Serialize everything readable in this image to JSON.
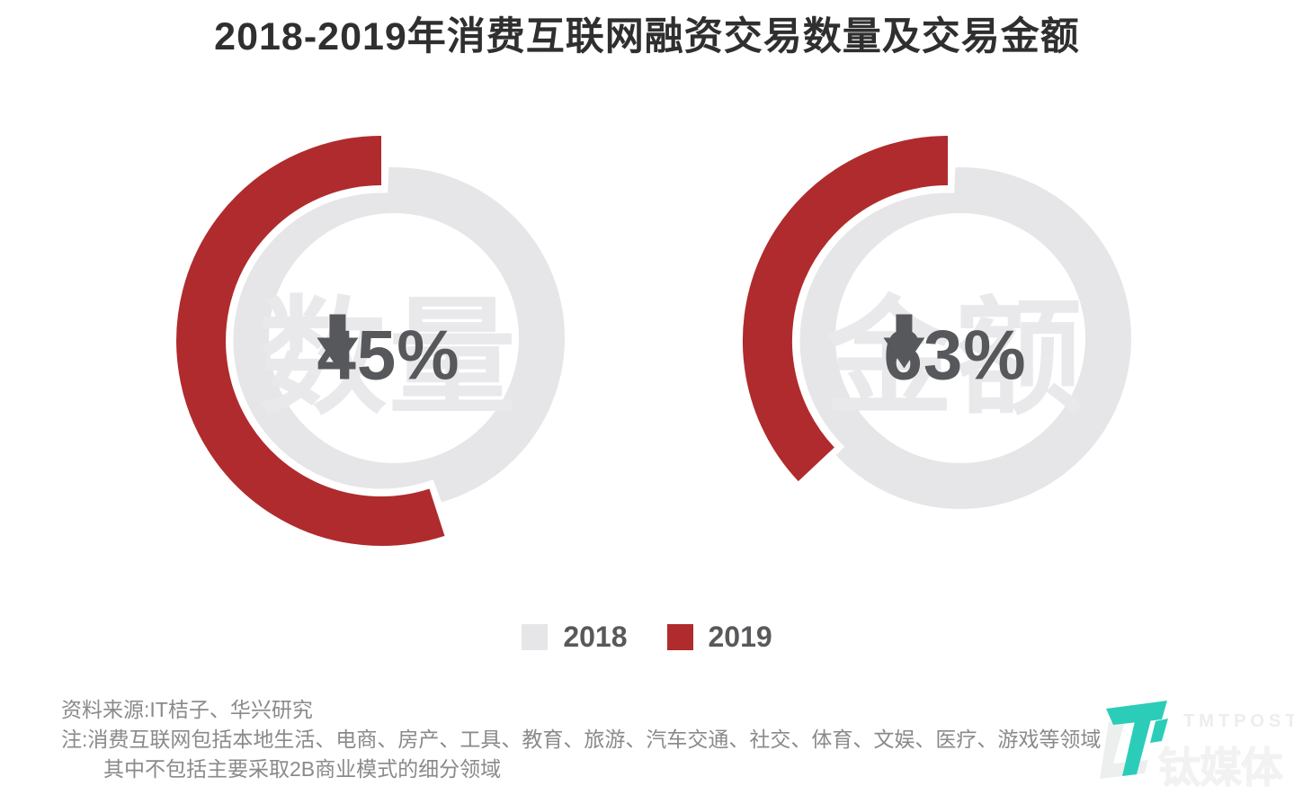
{
  "title": "2018-2019年消费互联网融资交易数量及交易金额",
  "chart_data": [
    {
      "type": "pie",
      "subtype": "donut-decline",
      "label": "数量",
      "decline_pct": 45,
      "display_value": "45%",
      "arrow": "down",
      "baseline_year": "2018",
      "compare_year": "2019",
      "series": [
        {
          "name": "2018",
          "value": 100
        },
        {
          "name": "2019",
          "value": 55
        }
      ]
    },
    {
      "type": "pie",
      "subtype": "donut-decline",
      "label": "金额",
      "decline_pct": 63,
      "display_value": "63%",
      "arrow": "down",
      "baseline_year": "2018",
      "compare_year": "2019",
      "series": [
        {
          "name": "2018",
          "value": 100
        },
        {
          "name": "2019",
          "value": 37
        }
      ]
    }
  ],
  "legend": [
    {
      "label": "2018",
      "color": "#e6e6e8"
    },
    {
      "label": "2019",
      "color": "#b02b2d"
    }
  ],
  "footnotes": {
    "source": "资料来源:IT桔子、华兴研究",
    "note_line1": "注:消费互联网包括本地生活、电商、房产、工具、教育、旅游、汽车交通、社交、体育、文娱、医疗、游戏等领域",
    "note_line2": "其中不包括主要采取2B商业模式的细分领域"
  },
  "watermark": {
    "logo_text": "TMTPOST",
    "brand_cn": "钛媒体",
    "teal": "#2ccdb8"
  },
  "colors": {
    "red": "#b02b2d",
    "gray_ring": "#e6e6e8",
    "watermark_text": "#e9e9eb",
    "value_text": "#57585b",
    "title_text": "#2f2f2f",
    "note_text": "#8a8a8a",
    "halo": "#ffffff"
  }
}
